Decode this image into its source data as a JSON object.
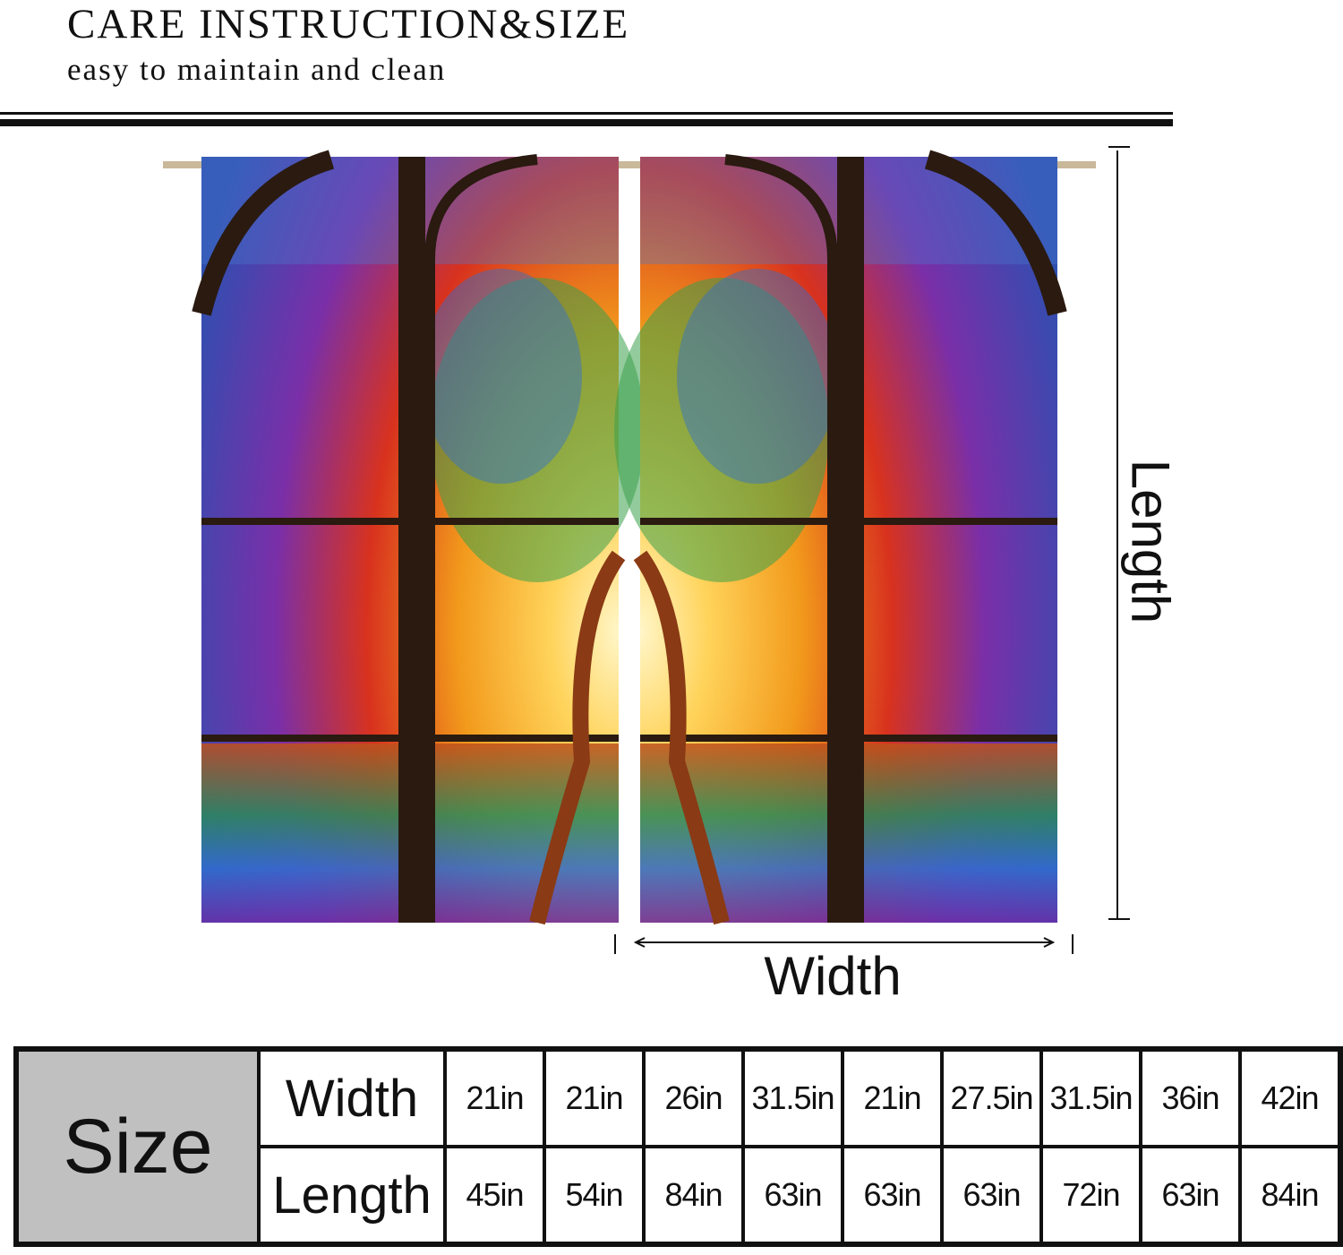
{
  "header": {
    "title": "CARE INSTRUCTION&SIZE",
    "subtitle": "easy to maintain and clean"
  },
  "product_image": {
    "subject": "stained-glass tree of life curtains, two panels on rod",
    "colors": {
      "red": "#d8321e",
      "orange": "#f29a1c",
      "yellow": "#ffe27a",
      "green": "#5cb83a",
      "blue": "#2f6fd0",
      "purple": "#7a2fa8",
      "frame": "#2a1a10"
    }
  },
  "dimensions": {
    "length_label": "Length",
    "width_label": "Width"
  },
  "size_table": {
    "header": "Size",
    "rows": [
      {
        "label": "Width",
        "values": [
          "21in",
          "21in",
          "26in",
          "31.5in",
          "21in",
          "27.5in",
          "31.5in",
          "36in",
          "42in"
        ]
      },
      {
        "label": "Length",
        "values": [
          "45in",
          "54in",
          "84in",
          "63in",
          "63in",
          "63in",
          "72in",
          "63in",
          "84in"
        ]
      }
    ]
  }
}
